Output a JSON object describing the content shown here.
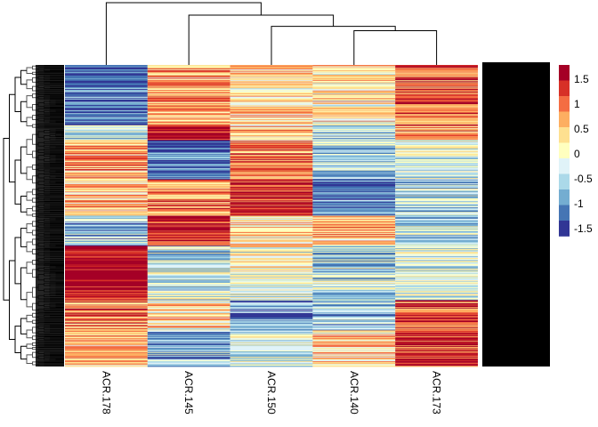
{
  "chart_data": {
    "type": "heatmap",
    "title": "",
    "xlabel": "",
    "ylabel": "",
    "columns": [
      "ACR.178",
      "ACR.145",
      "ACR.150",
      "ACR.140",
      "ACR.173"
    ],
    "row_labels_visible": "overplotted (illegible, rendered as solid black block)",
    "row_count_estimate": 400,
    "column_dendrogram": {
      "merges": [
        {
          "left": "ACR.140",
          "right": "ACR.173",
          "height": 0.55
        },
        {
          "left": "ACR.150",
          "right": "ACR.140|ACR.173",
          "height": 0.62
        },
        {
          "left": "ACR.145",
          "right": "ACR.150|ACR.140|ACR.173",
          "height": 0.8
        },
        {
          "left": "ACR.178",
          "right": "ACR.145|ACR.150|ACR.140|ACR.173",
          "height": 1.0
        }
      ]
    },
    "row_dendrogram": "dense hierarchical tree on left",
    "value_range": [
      -1.75,
      1.75
    ],
    "legend": {
      "placement": "right",
      "ticks": [
        "1.5",
        "1",
        "0.5",
        "0",
        "-0.5",
        "-1",
        "-1.5"
      ],
      "colors": [
        "#a50026",
        "#d73027",
        "#f46d43",
        "#fdae61",
        "#fee090",
        "#ffffbf",
        "#e0f3f8",
        "#abd9e9",
        "#74add1",
        "#4575b4",
        "#313695"
      ]
    },
    "block_pattern": [
      {
        "rows": [
          0,
          0.2
        ],
        "values": [
          -1.4,
          0.6,
          0.3,
          0.2,
          1.0
        ]
      },
      {
        "rows": [
          0.2,
          0.25
        ],
        "values": [
          -0.5,
          1.6,
          0.4,
          -0.6,
          0.7
        ]
      },
      {
        "rows": [
          0.25,
          0.38
        ],
        "values": [
          0.6,
          -1.4,
          0.8,
          -0.6,
          -0.3
        ]
      },
      {
        "rows": [
          0.38,
          0.5
        ],
        "values": [
          0.4,
          0.7,
          1.4,
          -1.2,
          -0.6
        ]
      },
      {
        "rows": [
          0.5,
          0.6
        ],
        "values": [
          -0.8,
          1.5,
          0.2,
          0.5,
          -0.5
        ]
      },
      {
        "rows": [
          0.6,
          0.78
        ],
        "values": [
          1.7,
          -0.4,
          -0.2,
          -0.5,
          -0.3
        ]
      },
      {
        "rows": [
          0.78,
          0.88
        ],
        "values": [
          0.8,
          0.2,
          -1.0,
          -0.7,
          1.2
        ]
      },
      {
        "rows": [
          0.88,
          1.0
        ],
        "values": [
          0.5,
          -0.8,
          -0.3,
          0.3,
          1.3
        ]
      }
    ]
  }
}
